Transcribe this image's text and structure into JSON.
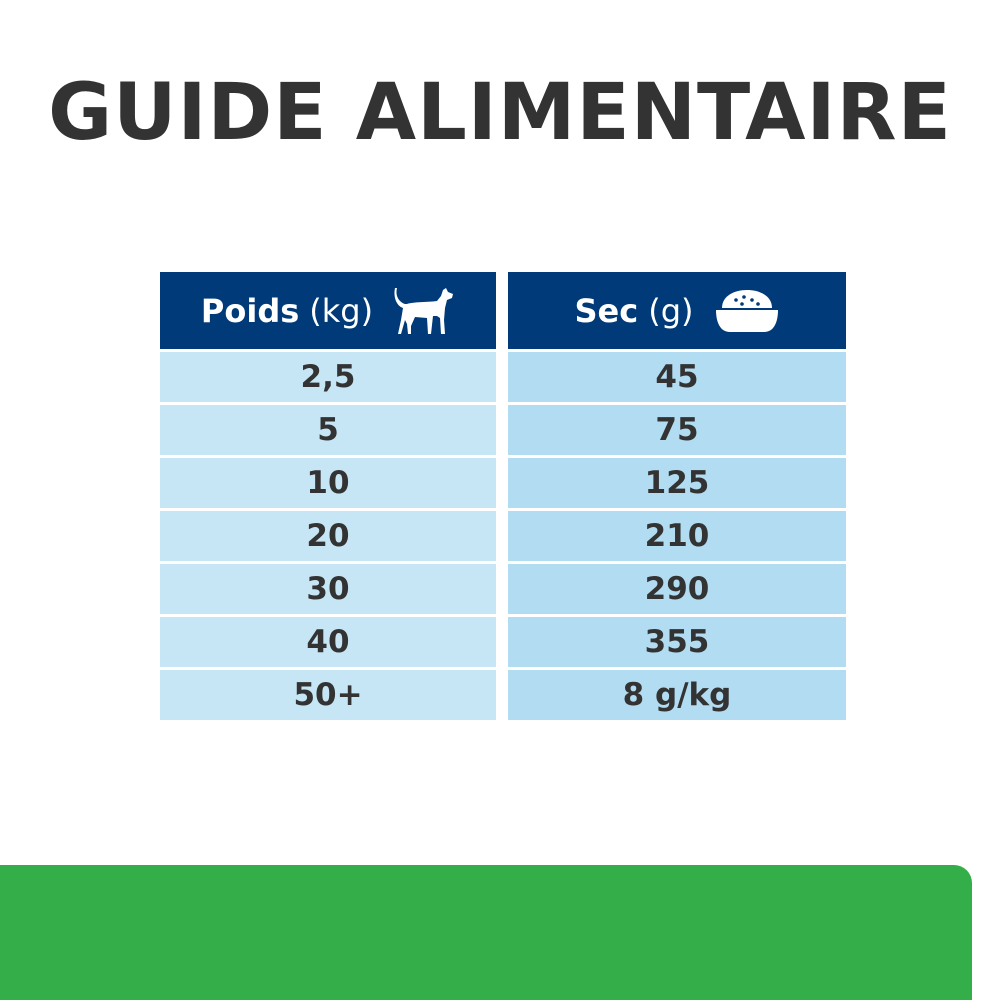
{
  "title": "GUIDE ALIMENTAIRE",
  "table": {
    "headers": [
      {
        "label": "Poids",
        "unit": "(kg)",
        "icon": "dog-icon"
      },
      {
        "label": "Sec",
        "unit": "(g)",
        "icon": "food-bowl-icon"
      }
    ],
    "rows": [
      [
        "2,5",
        "45"
      ],
      [
        "5",
        "75"
      ],
      [
        "10",
        "125"
      ],
      [
        "20",
        "210"
      ],
      [
        "30",
        "290"
      ],
      [
        "40",
        "355"
      ],
      [
        "50+",
        "8 g/kg"
      ]
    ]
  },
  "colors": {
    "header": "#003a78",
    "text": "#333333",
    "banner": "#34ae48"
  }
}
